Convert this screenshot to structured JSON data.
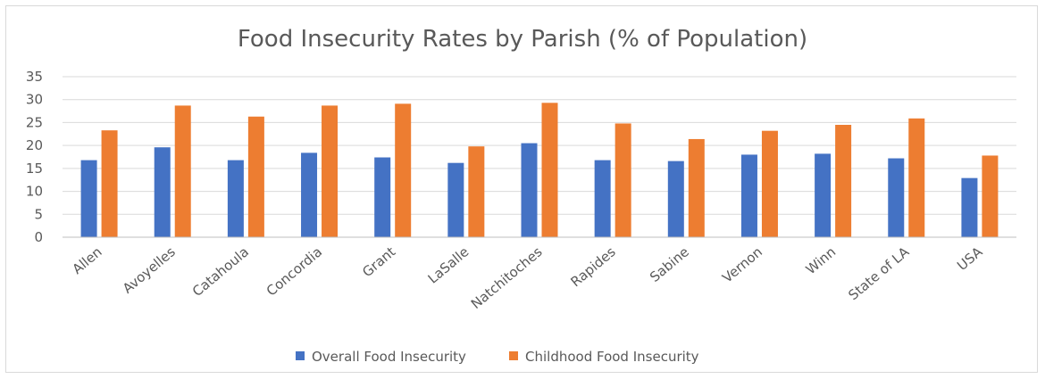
{
  "chart_data": {
    "type": "bar",
    "title": "Food Insecurity Rates by Parish (% of Population)",
    "xlabel": "",
    "ylabel": "",
    "ylim": [
      0,
      35
    ],
    "yticks": [
      0,
      5,
      10,
      15,
      20,
      25,
      30,
      35
    ],
    "grid": true,
    "legend_position": "bottom",
    "categories": [
      "Allen",
      "Avoyelles",
      "Catahoula",
      "Concordia",
      "Grant",
      "LaSalle",
      "Natchitoches",
      "Rapides",
      "Sabine",
      "Vernon",
      "Winn",
      "State of LA",
      "USA"
    ],
    "series": [
      {
        "name": "Overall Food Insecurity",
        "color": "#4472c4",
        "values": [
          16.8,
          19.6,
          16.8,
          18.4,
          17.4,
          16.2,
          20.5,
          16.8,
          16.6,
          18.0,
          18.2,
          17.2,
          12.9
        ]
      },
      {
        "name": "Childhood Food Insecurity",
        "color": "#ed7d31",
        "values": [
          23.3,
          28.7,
          26.3,
          28.7,
          29.1,
          19.8,
          29.3,
          24.8,
          21.4,
          23.2,
          24.5,
          25.9,
          17.8
        ]
      }
    ]
  }
}
